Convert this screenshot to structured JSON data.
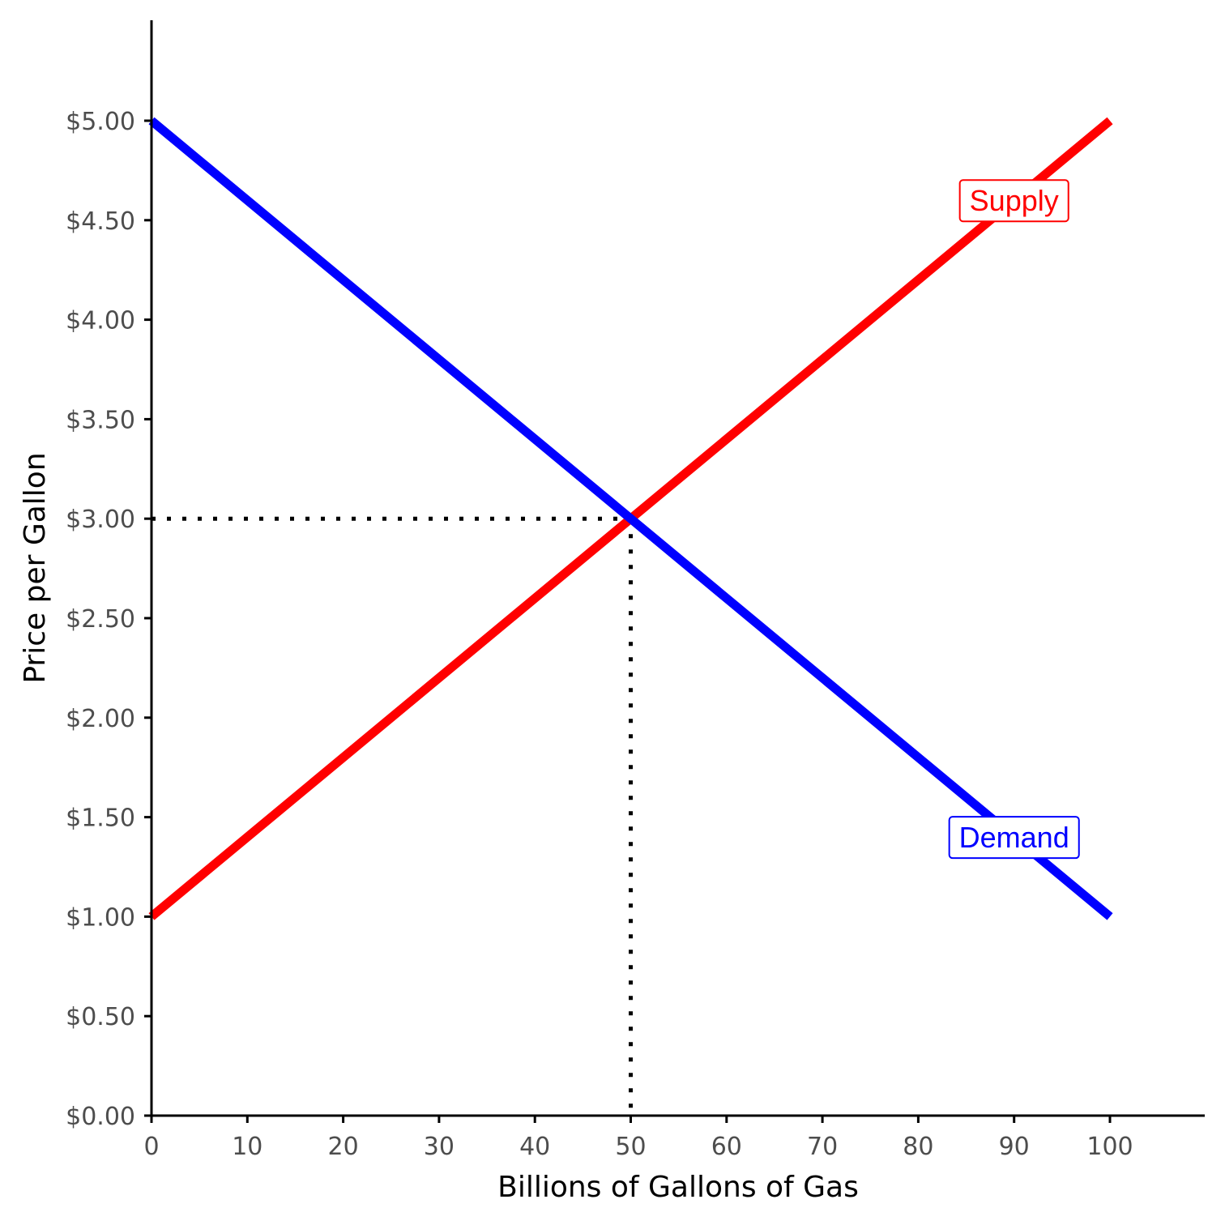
{
  "chart_data": {
    "type": "line",
    "title": "",
    "xlabel": "Billions of Gallons of Gas",
    "ylabel": "Price per Gallon",
    "xlim": [
      0,
      110
    ],
    "ylim": [
      0,
      5.5
    ],
    "x_ticks": [
      0,
      10,
      20,
      30,
      40,
      50,
      60,
      70,
      80,
      90,
      100
    ],
    "x_tick_labels": [
      "0",
      "10",
      "20",
      "30",
      "40",
      "50",
      "60",
      "70",
      "80",
      "90",
      "100"
    ],
    "y_ticks": [
      0,
      0.5,
      1,
      1.5,
      2,
      2.5,
      3,
      3.5,
      4,
      4.5,
      5
    ],
    "y_tick_labels": [
      "$0.00",
      "$0.50",
      "$1.00",
      "$1.50",
      "$2.00",
      "$2.50",
      "$3.00",
      "$3.50",
      "$4.00",
      "$4.50",
      "$5.00"
    ],
    "grid": false,
    "legend": "none",
    "series": [
      {
        "name": "Supply",
        "color": "#ff0000",
        "x": [
          0,
          100
        ],
        "y": [
          1.0,
          5.0
        ],
        "label_at": {
          "x": 90,
          "y": 4.6
        }
      },
      {
        "name": "Demand",
        "color": "#0000ff",
        "x": [
          0,
          100
        ],
        "y": [
          5.0,
          1.0
        ],
        "label_at": {
          "x": 90,
          "y": 1.4
        }
      }
    ],
    "equilibrium": {
      "x": 50,
      "y": 3.0,
      "line_style": "dotted",
      "color": "#000000"
    }
  }
}
